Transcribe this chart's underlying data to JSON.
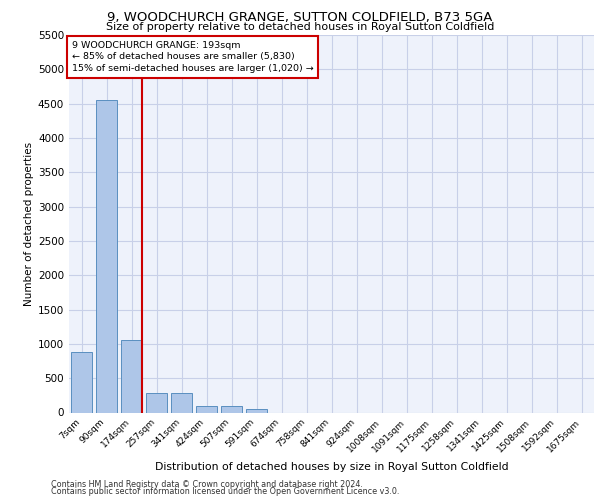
{
  "title_line1": "9, WOODCHURCH GRANGE, SUTTON COLDFIELD, B73 5GA",
  "title_line2": "Size of property relative to detached houses in Royal Sutton Coldfield",
  "xlabel": "Distribution of detached houses by size in Royal Sutton Coldfield",
  "ylabel": "Number of detached properties",
  "footnote1": "Contains HM Land Registry data © Crown copyright and database right 2024.",
  "footnote2": "Contains public sector information licensed under the Open Government Licence v3.0.",
  "annotation_line1": "9 WOODCHURCH GRANGE: 193sqm",
  "annotation_line2": "← 85% of detached houses are smaller (5,830)",
  "annotation_line3": "15% of semi-detached houses are larger (1,020) →",
  "bar_categories": [
    "7sqm",
    "90sqm",
    "174sqm",
    "257sqm",
    "341sqm",
    "424sqm",
    "507sqm",
    "591sqm",
    "674sqm",
    "758sqm",
    "841sqm",
    "924sqm",
    "1008sqm",
    "1091sqm",
    "1175sqm",
    "1258sqm",
    "1341sqm",
    "1425sqm",
    "1508sqm",
    "1592sqm",
    "1675sqm"
  ],
  "bar_values": [
    880,
    4560,
    1060,
    290,
    290,
    90,
    90,
    55,
    0,
    0,
    0,
    0,
    0,
    0,
    0,
    0,
    0,
    0,
    0,
    0,
    0
  ],
  "bar_color": "#aec6e8",
  "bar_edge_color": "#5a8fc0",
  "red_line_x": 2.425,
  "red_line_color": "#cc0000",
  "annotation_box_edge_color": "#cc0000",
  "background_color": "#eef2fb",
  "grid_color": "#c8d0e8",
  "ylim": [
    0,
    5500
  ],
  "yticks": [
    0,
    500,
    1000,
    1500,
    2000,
    2500,
    3000,
    3500,
    4000,
    4500,
    5000,
    5500
  ]
}
